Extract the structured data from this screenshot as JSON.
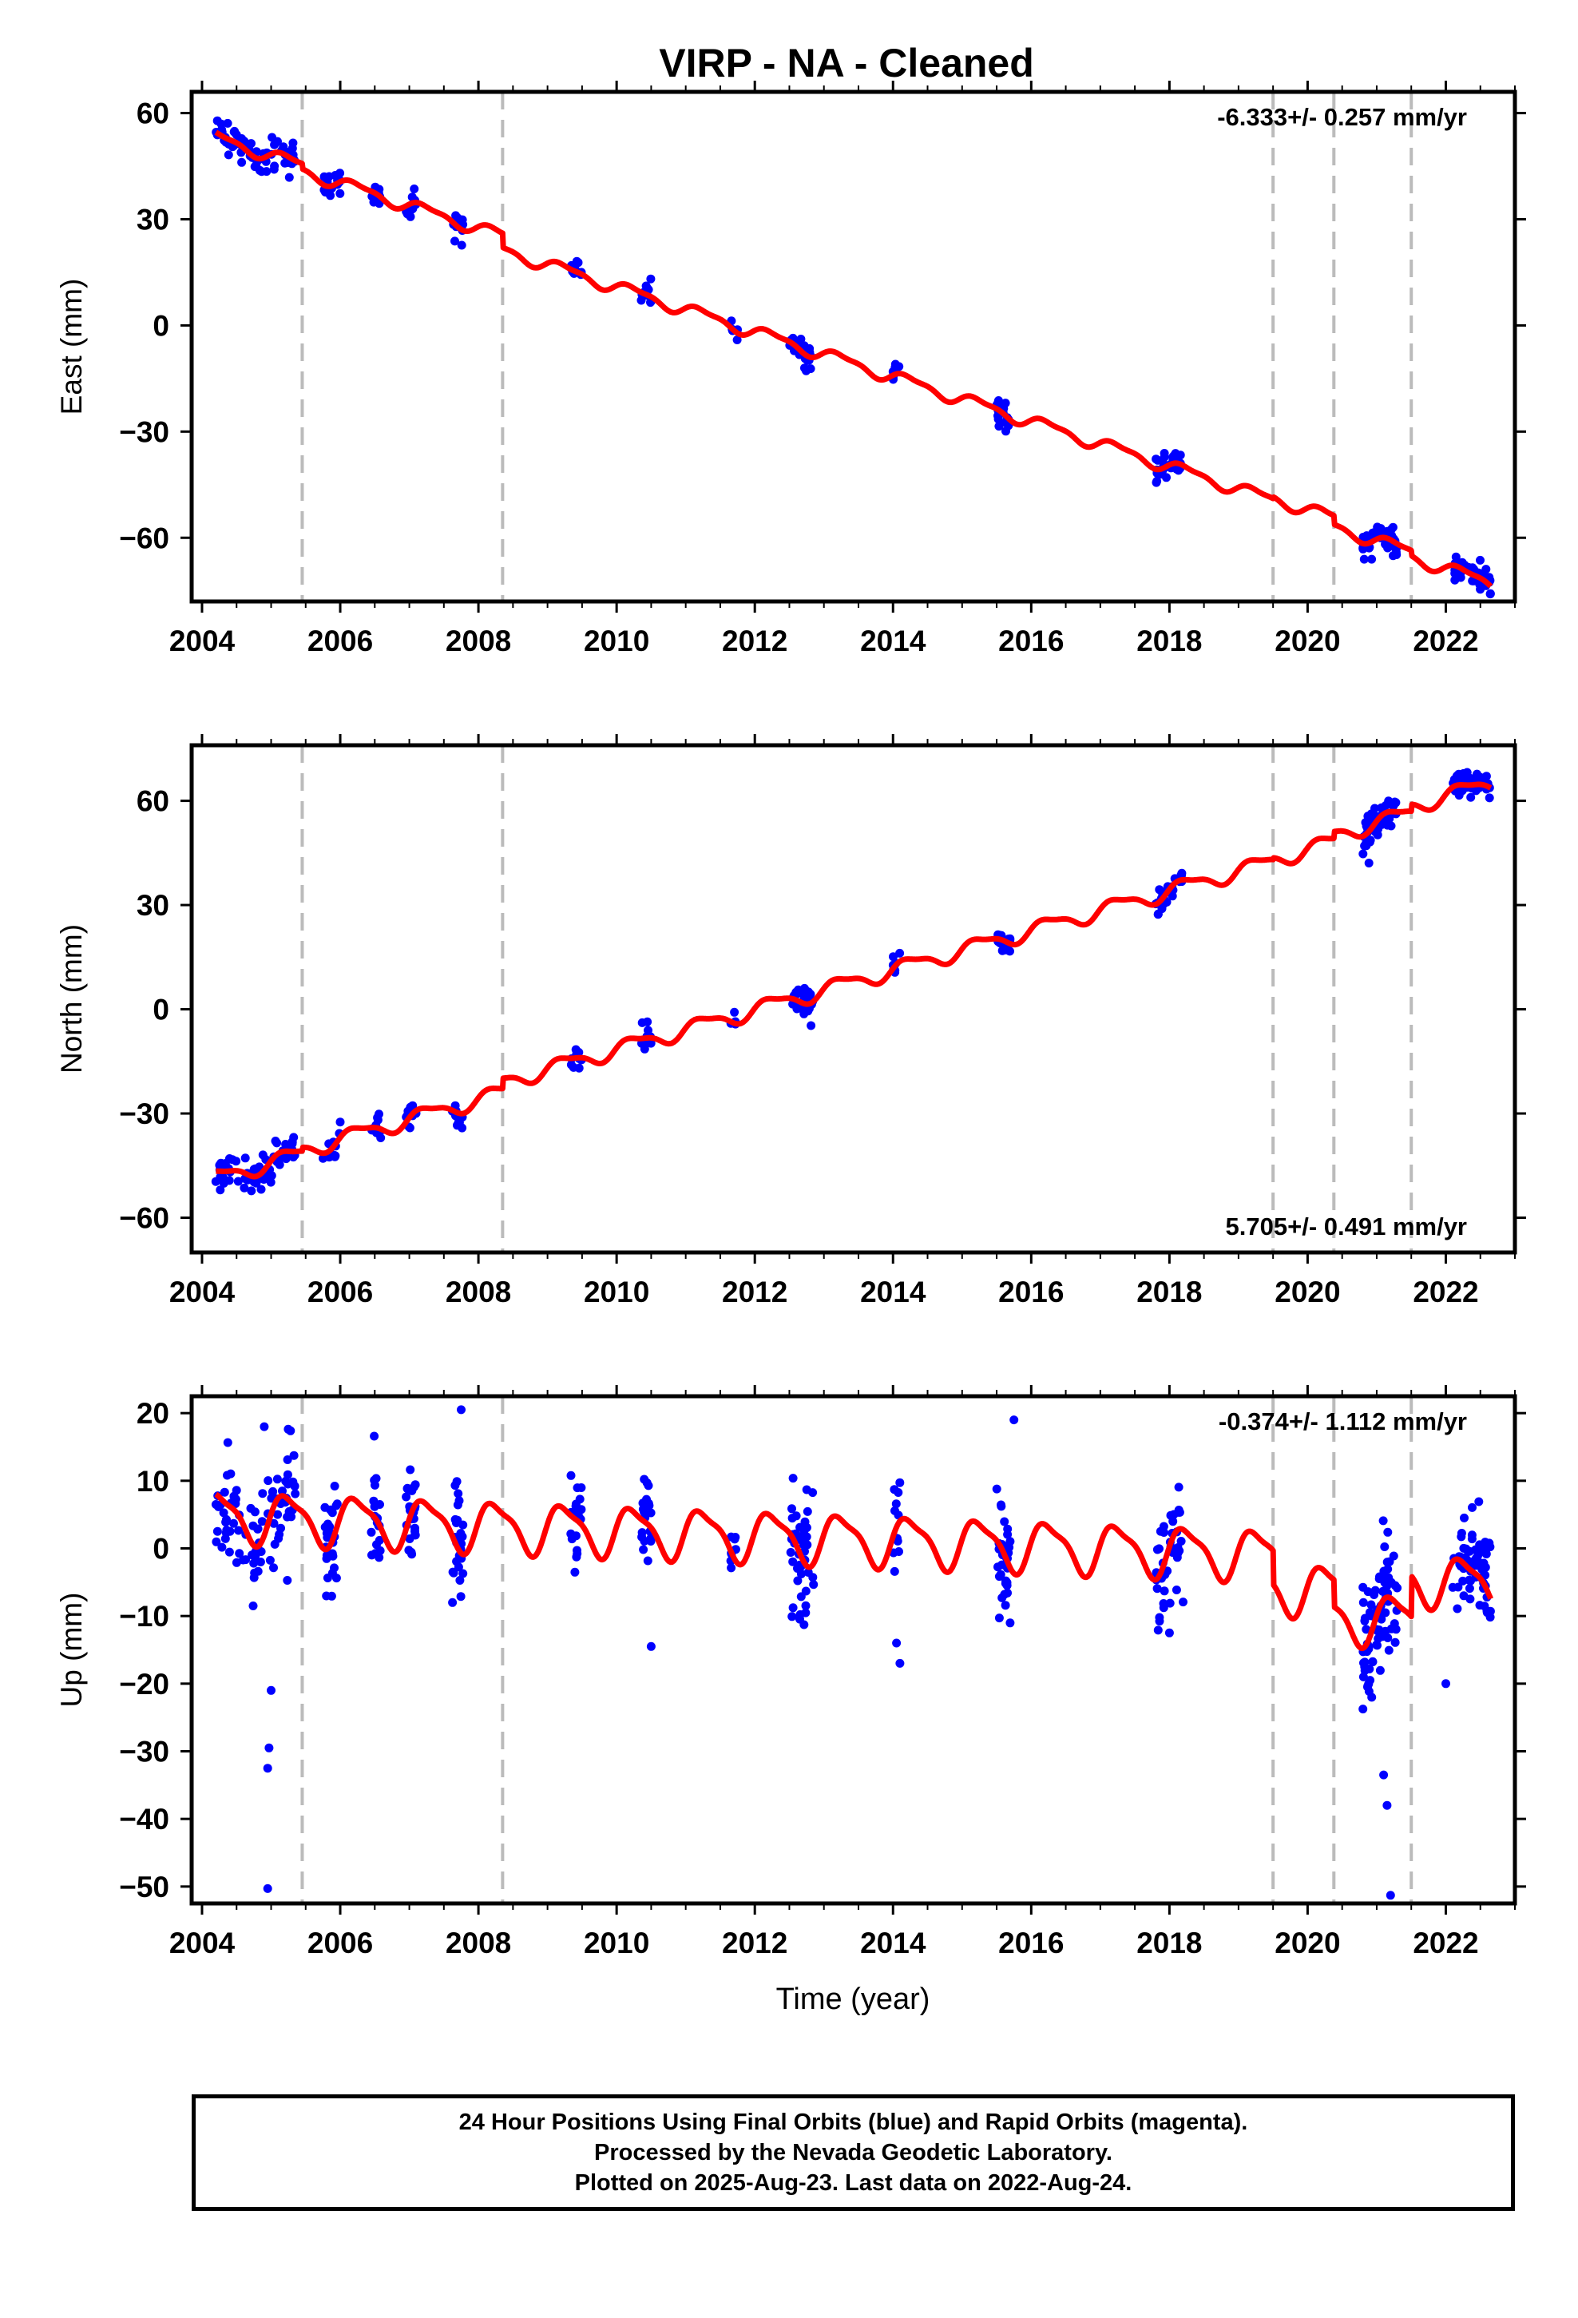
{
  "figure": {
    "title": "VIRP  - NA - Cleaned",
    "xlabel": "Time (year)"
  },
  "colors": {
    "observations": "#0000ff",
    "model": "#ff0000",
    "steps": "#bbbbbb",
    "frame": "#000000"
  },
  "footer": {
    "line1": "24 Hour Positions Using Final Orbits (blue) and Rapid Orbits (magenta).",
    "line2": "Processed by the Nevada Geodetic Laboratory.",
    "line3": "Plotted on 2025-Aug-23. Last data on 2022-Aug-24."
  },
  "chart_data": [
    {
      "type": "scatter",
      "component": "East",
      "ylabel": "East (mm)",
      "rate_label": "-6.333+/- 0.257 mm/yr",
      "rate_position": "top-right",
      "xlim": [
        2003.85,
        2023.0
      ],
      "ylim": [
        -78,
        66
      ],
      "xticks": [
        2004,
        2006,
        2008,
        2010,
        2012,
        2014,
        2016,
        2018,
        2020,
        2022
      ],
      "yticks": [
        60,
        30,
        0,
        -30,
        -60
      ],
      "ytick_labels": [
        "60",
        "30",
        "0",
        "−30",
        "−60"
      ],
      "step_epochs": [
        2005.45,
        2008.35,
        2019.5,
        2020.38,
        2021.5
      ],
      "model": {
        "rate_mm_per_yr": -6.333,
        "ref_year": 2012.9,
        "ref_value": -2.0,
        "annual_amplitude_mm": 1.6,
        "semiannual_amplitude_mm": 0.6,
        "offsets": [
          {
            "epoch": 2005.45,
            "jump_mm": -1.5
          },
          {
            "epoch": 2008.35,
            "jump_mm": -4.0
          },
          {
            "epoch": 2019.5,
            "jump_mm": 0.5
          },
          {
            "epoch": 2020.38,
            "jump_mm": -2.5
          },
          {
            "epoch": 2021.5,
            "jump_mm": -1.5
          }
        ]
      },
      "observation_clusters": [
        {
          "start": 2004.2,
          "end": 2005.35,
          "n": 70,
          "sd_mm": 2.5
        },
        {
          "start": 2005.75,
          "end": 2006.0,
          "n": 16,
          "sd_mm": 2.5
        },
        {
          "start": 2006.45,
          "end": 2006.6,
          "n": 12,
          "sd_mm": 1.8
        },
        {
          "start": 2006.95,
          "end": 2007.1,
          "n": 12,
          "sd_mm": 1.8
        },
        {
          "start": 2007.62,
          "end": 2007.78,
          "n": 14,
          "sd_mm": 2.0
        },
        {
          "start": 2009.32,
          "end": 2009.5,
          "n": 12,
          "sd_mm": 1.8
        },
        {
          "start": 2010.35,
          "end": 2010.5,
          "n": 12,
          "sd_mm": 1.8
        },
        {
          "start": 2011.65,
          "end": 2011.75,
          "n": 5,
          "sd_mm": 1.0
        },
        {
          "start": 2012.5,
          "end": 2012.85,
          "n": 30,
          "sd_mm": 1.5
        },
        {
          "start": 2014.0,
          "end": 2014.1,
          "n": 8,
          "sd_mm": 1.8
        },
        {
          "start": 2015.5,
          "end": 2015.7,
          "n": 22,
          "sd_mm": 1.8
        },
        {
          "start": 2017.8,
          "end": 2018.2,
          "n": 30,
          "sd_mm": 2.0
        },
        {
          "start": 2020.8,
          "end": 2021.3,
          "n": 50,
          "sd_mm": 2.5
        },
        {
          "start": 2022.1,
          "end": 2022.65,
          "n": 50,
          "sd_mm": 1.8
        }
      ]
    },
    {
      "type": "scatter",
      "component": "North",
      "ylabel": "North (mm)",
      "rate_label": "5.705+/- 0.491 mm/yr",
      "rate_position": "bottom-right",
      "xlim": [
        2003.85,
        2023.0
      ],
      "ylim": [
        -70,
        76
      ],
      "xticks": [
        2004,
        2006,
        2008,
        2010,
        2012,
        2014,
        2016,
        2018,
        2020,
        2022
      ],
      "yticks": [
        60,
        30,
        0,
        -30,
        -60
      ],
      "ytick_labels": [
        "60",
        "30",
        "0",
        "−30",
        "−60"
      ],
      "step_epochs": [
        2005.45,
        2008.35,
        2019.5,
        2020.38,
        2021.5
      ],
      "model": {
        "rate_mm_per_yr": 5.705,
        "ref_year": 2012.9,
        "ref_value": 1.0,
        "annual_amplitude_mm": 2.2,
        "semiannual_amplitude_mm": 0.7,
        "offsets": [
          {
            "epoch": 2005.45,
            "jump_mm": 1.0
          },
          {
            "epoch": 2008.35,
            "jump_mm": 3.0
          },
          {
            "epoch": 2019.5,
            "jump_mm": 0.5
          },
          {
            "epoch": 2020.38,
            "jump_mm": 2.0
          },
          {
            "epoch": 2021.5,
            "jump_mm": 2.0
          }
        ]
      },
      "observation_clusters": [
        {
          "start": 2004.2,
          "end": 2005.35,
          "n": 70,
          "sd_mm": 2.5
        },
        {
          "start": 2005.75,
          "end": 2006.0,
          "n": 16,
          "sd_mm": 2.0
        },
        {
          "start": 2006.45,
          "end": 2006.6,
          "n": 12,
          "sd_mm": 1.8
        },
        {
          "start": 2006.95,
          "end": 2007.1,
          "n": 12,
          "sd_mm": 2.0
        },
        {
          "start": 2007.62,
          "end": 2007.78,
          "n": 14,
          "sd_mm": 1.8
        },
        {
          "start": 2009.32,
          "end": 2009.5,
          "n": 12,
          "sd_mm": 1.8
        },
        {
          "start": 2010.35,
          "end": 2010.5,
          "n": 12,
          "sd_mm": 2.0
        },
        {
          "start": 2011.65,
          "end": 2011.75,
          "n": 5,
          "sd_mm": 1.0
        },
        {
          "start": 2012.5,
          "end": 2012.85,
          "n": 30,
          "sd_mm": 1.8
        },
        {
          "start": 2014.0,
          "end": 2014.1,
          "n": 8,
          "sd_mm": 1.8
        },
        {
          "start": 2015.5,
          "end": 2015.7,
          "n": 22,
          "sd_mm": 2.0
        },
        {
          "start": 2017.8,
          "end": 2018.2,
          "n": 30,
          "sd_mm": 2.0
        },
        {
          "start": 2020.8,
          "end": 2021.3,
          "n": 50,
          "sd_mm": 3.0
        },
        {
          "start": 2022.1,
          "end": 2022.65,
          "n": 50,
          "sd_mm": 1.8
        }
      ]
    },
    {
      "type": "scatter",
      "component": "Up",
      "ylabel": "Up (mm)",
      "rate_label": "-0.374+/- 1.112 mm/yr",
      "rate_position": "top-right",
      "xlim": [
        2003.85,
        2023.0
      ],
      "ylim": [
        -52.5,
        22.5
      ],
      "xticks": [
        2004,
        2006,
        2008,
        2010,
        2012,
        2014,
        2016,
        2018,
        2020,
        2022
      ],
      "yticks": [
        20,
        10,
        0,
        -10,
        -20,
        -30,
        -40,
        -50
      ],
      "ytick_labels": [
        "20",
        "10",
        "0",
        "−10",
        "−20",
        "−30",
        "−40",
        "−50"
      ],
      "step_epochs": [
        2005.45,
        2008.35,
        2019.5,
        2020.38,
        2021.5
      ],
      "model": {
        "rate_mm_per_yr": -0.374,
        "ref_year": 2012.9,
        "ref_value": 1.5,
        "annual_amplitude_mm": 3.5,
        "semiannual_amplitude_mm": 1.0,
        "offsets": [
          {
            "epoch": 2005.45,
            "jump_mm": 0.0
          },
          {
            "epoch": 2008.35,
            "jump_mm": 0.0
          },
          {
            "epoch": 2019.5,
            "jump_mm": -5.0
          },
          {
            "epoch": 2020.38,
            "jump_mm": -4.0
          },
          {
            "epoch": 2021.5,
            "jump_mm": 6.0
          }
        ]
      },
      "observation_clusters": [
        {
          "start": 2004.2,
          "end": 2005.35,
          "n": 90,
          "sd_mm": 4.5
        },
        {
          "start": 2005.75,
          "end": 2006.0,
          "n": 25,
          "sd_mm": 4.5
        },
        {
          "start": 2006.45,
          "end": 2006.6,
          "n": 20,
          "sd_mm": 4.0
        },
        {
          "start": 2006.95,
          "end": 2007.1,
          "n": 25,
          "sd_mm": 5.0
        },
        {
          "start": 2007.62,
          "end": 2007.78,
          "n": 28,
          "sd_mm": 4.5
        },
        {
          "start": 2009.32,
          "end": 2009.5,
          "n": 18,
          "sd_mm": 3.5
        },
        {
          "start": 2010.35,
          "end": 2010.5,
          "n": 20,
          "sd_mm": 4.5
        },
        {
          "start": 2011.65,
          "end": 2011.75,
          "n": 8,
          "sd_mm": 2.5
        },
        {
          "start": 2012.5,
          "end": 2012.85,
          "n": 45,
          "sd_mm": 4.0
        },
        {
          "start": 2014.0,
          "end": 2014.1,
          "n": 12,
          "sd_mm": 4.5
        },
        {
          "start": 2015.5,
          "end": 2015.7,
          "n": 35,
          "sd_mm": 4.5
        },
        {
          "start": 2017.8,
          "end": 2018.2,
          "n": 40,
          "sd_mm": 4.5
        },
        {
          "start": 2020.8,
          "end": 2021.3,
          "n": 80,
          "sd_mm": 5.0
        },
        {
          "start": 2022.1,
          "end": 2022.65,
          "n": 70,
          "sd_mm": 3.5
        }
      ],
      "outliers": [
        {
          "x": 2004.95,
          "y": -50.3
        },
        {
          "x": 2004.95,
          "y": -32.5
        },
        {
          "x": 2004.97,
          "y": -29.5
        },
        {
          "x": 2005.0,
          "y": -21.0
        },
        {
          "x": 2004.9,
          "y": 18.0
        },
        {
          "x": 2007.75,
          "y": 20.5
        },
        {
          "x": 2010.5,
          "y": -14.5
        },
        {
          "x": 2014.1,
          "y": -17.0
        },
        {
          "x": 2014.05,
          "y": -14.0
        },
        {
          "x": 2021.2,
          "y": -51.3
        },
        {
          "x": 2021.15,
          "y": -38.0
        },
        {
          "x": 2021.1,
          "y": -33.5
        },
        {
          "x": 2022.0,
          "y": -20.0
        },
        {
          "x": 2015.75,
          "y": 19.0
        },
        {
          "x": 2018.0,
          "y": -12.5
        }
      ]
    }
  ]
}
